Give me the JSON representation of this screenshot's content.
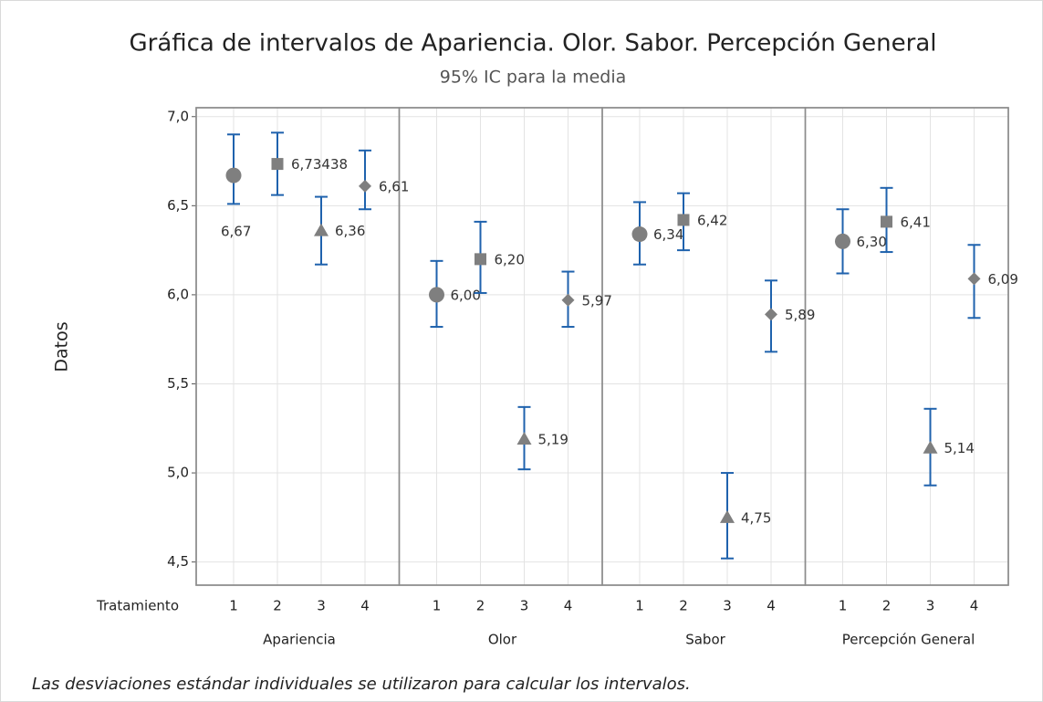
{
  "chart_data": {
    "type": "interval",
    "title": "Gráfica de intervalos de Apariencia. Olor. Sabor. Percepción General",
    "subtitle": "95% IC para la media",
    "y_label": "Datos",
    "x_label": "Tratamiento",
    "footnote": "Las desviaciones estándar individuales se utilizaron para calcular los intervalos.",
    "ylim": [
      4.37,
      7.05
    ],
    "yticks": [
      {
        "value": 4.5,
        "label": "4,5"
      },
      {
        "value": 5.0,
        "label": "5,0"
      },
      {
        "value": 5.5,
        "label": "5,5"
      },
      {
        "value": 6.0,
        "label": "6,0"
      },
      {
        "value": 6.5,
        "label": "6,5"
      },
      {
        "value": 7.0,
        "label": "7,0"
      }
    ],
    "grid": true,
    "marker_color": "#7f7f7f",
    "interval_color": "#1f62ad",
    "markers": [
      "circle",
      "square",
      "triangle",
      "diamond"
    ],
    "groups": [
      {
        "name": "Apariencia",
        "categories": [
          "1",
          "2",
          "3",
          "4"
        ],
        "values": [
          6.67,
          6.73438,
          6.36,
          6.61
        ],
        "value_labels": [
          "6,67",
          "6,73438",
          "6,36",
          "6,61"
        ],
        "lower": [
          6.51,
          6.56,
          6.17,
          6.48
        ],
        "upper": [
          6.9,
          6.91,
          6.55,
          6.81
        ]
      },
      {
        "name": "Olor",
        "categories": [
          "1",
          "2",
          "3",
          "4"
        ],
        "values": [
          6.0,
          6.2,
          5.19,
          5.97
        ],
        "value_labels": [
          "6,00",
          "6,20",
          "5,19",
          "5,97"
        ],
        "lower": [
          5.82,
          6.01,
          5.02,
          5.82
        ],
        "upper": [
          6.19,
          6.41,
          5.37,
          6.13
        ]
      },
      {
        "name": "Sabor",
        "categories": [
          "1",
          "2",
          "3",
          "4"
        ],
        "values": [
          6.34,
          6.42,
          4.75,
          5.89
        ],
        "value_labels": [
          "6,34",
          "6,42",
          "4,75",
          "5,89"
        ],
        "lower": [
          6.17,
          6.25,
          4.52,
          5.68
        ],
        "upper": [
          6.52,
          6.57,
          5.0,
          6.08
        ]
      },
      {
        "name": "Percepción General",
        "categories": [
          "1",
          "2",
          "3",
          "4"
        ],
        "values": [
          6.3,
          6.41,
          5.14,
          6.09
        ],
        "value_labels": [
          "6,30",
          "6,41",
          "5,14",
          "6,09"
        ],
        "lower": [
          6.12,
          6.24,
          4.93,
          5.87
        ],
        "upper": [
          6.48,
          6.6,
          5.36,
          6.28
        ]
      }
    ]
  }
}
